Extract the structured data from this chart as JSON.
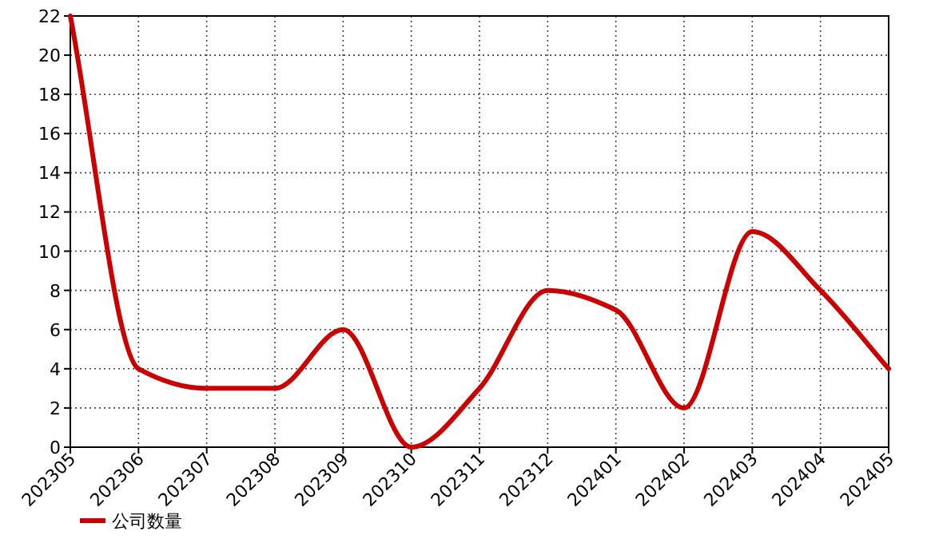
{
  "chart_data": {
    "type": "line",
    "categories": [
      "202305",
      "202306",
      "202307",
      "202308",
      "202309",
      "202310",
      "202311",
      "202312",
      "202401",
      "202402",
      "202403",
      "202404",
      "202405"
    ],
    "series": [
      {
        "name": "公司数量",
        "color": "#cc0000",
        "values": [
          22,
          4,
          3,
          3,
          6,
          0,
          3,
          8,
          7,
          2,
          11,
          8,
          4
        ]
      }
    ],
    "ylim": [
      0,
      22
    ],
    "yticks": [
      0,
      2,
      4,
      6,
      8,
      10,
      12,
      14,
      16,
      18,
      20,
      22
    ],
    "grid": true,
    "legend": "bottom left"
  }
}
